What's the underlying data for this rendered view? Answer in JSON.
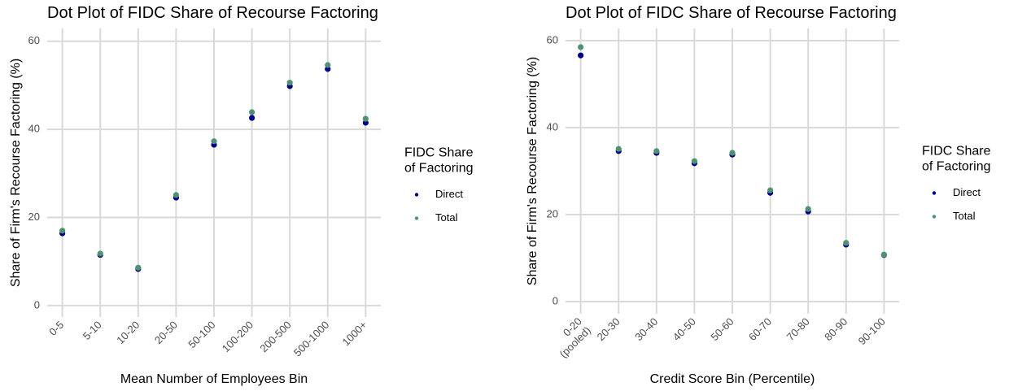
{
  "chart_data": [
    {
      "type": "scatter",
      "title": "Dot Plot of FIDC Share of Recourse Factoring",
      "x_label": "Mean Number of Employees Bin",
      "y_label": "Share of Firm's Recourse Factoring (%)",
      "legend_title": "FIDC Share\nof Factoring",
      "categories": [
        "0-5",
        "5-10",
        "10-20",
        "20-50",
        "50-100",
        "100-200",
        "200-500",
        "500-1000",
        "1000+"
      ],
      "series": [
        {
          "name": "Direct",
          "color": "#00008b",
          "values": [
            16.4,
            11.5,
            8.3,
            24.5,
            36.5,
            42.6,
            49.8,
            53.7,
            41.5
          ]
        },
        {
          "name": "Total",
          "color": "#4e9273",
          "values": [
            17.0,
            11.8,
            8.6,
            25.1,
            37.3,
            43.9,
            50.6,
            54.6,
            42.4
          ]
        }
      ],
      "ylim": [
        -2.6,
        62.9
      ],
      "yticks": [
        0,
        20,
        40,
        60
      ],
      "grid": true
    },
    {
      "type": "scatter",
      "title": "Dot Plot of FIDC Share of Recourse Factoring",
      "x_label": "Credit Score Bin (Percentile)",
      "y_label": "Share of Firm's Recourse Factoring (%)",
      "legend_title": "FIDC Share\nof Factoring",
      "categories": [
        "0-20\n(pooled)",
        "20-30",
        "30-40",
        "40-50",
        "50-60",
        "60-70",
        "70-80",
        "80-90",
        "90-100"
      ],
      "series": [
        {
          "name": "Direct",
          "color": "#00008b",
          "values": [
            56.6,
            34.6,
            34.2,
            31.8,
            33.8,
            25.0,
            20.7,
            13.1,
            10.7
          ]
        },
        {
          "name": "Total",
          "color": "#4e9273",
          "values": [
            58.5,
            35.1,
            34.6,
            32.3,
            34.2,
            25.6,
            21.3,
            13.5,
            10.8
          ]
        }
      ],
      "ylim": [
        -2.8,
        62.8
      ],
      "yticks": [
        0,
        20,
        40,
        60
      ],
      "grid": true
    }
  ]
}
